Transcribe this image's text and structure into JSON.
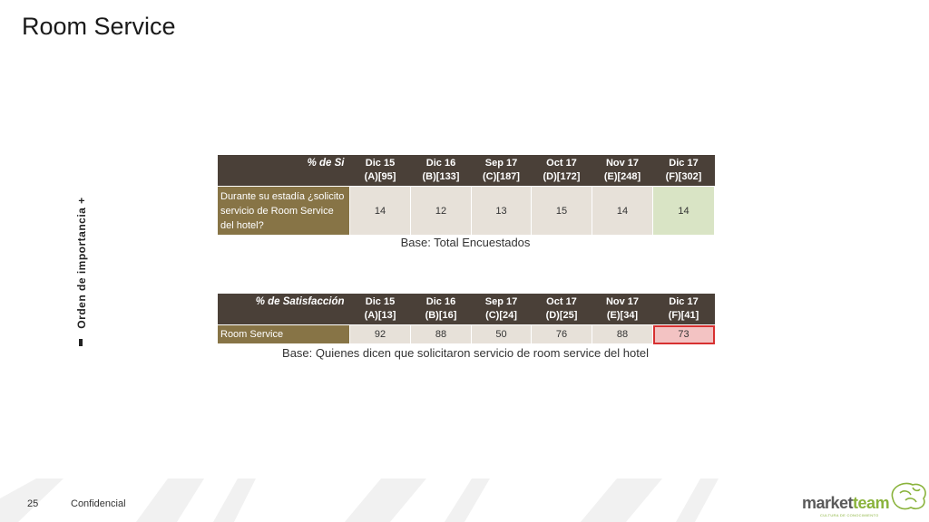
{
  "title": "Room Service",
  "axis_label": "Orden de importancia  +",
  "table1": {
    "metric": "% de Si",
    "columns": [
      {
        "line1": "Dic 15",
        "line2": "(A)[95]"
      },
      {
        "line1": "Dic 16",
        "line2": "(B)[133]"
      },
      {
        "line1": "Sep 17",
        "line2": "(C)[187]"
      },
      {
        "line1": "Oct 17",
        "line2": "(D)[172]"
      },
      {
        "line1": "Nov 17",
        "line2": "(E)[248]"
      },
      {
        "line1": "Dic 17",
        "line2": "(F)[302]"
      }
    ],
    "row_label": "Durante su estadía ¿solicito servicio de Room Service del hotel?",
    "values": [
      "14",
      "12",
      "13",
      "15",
      "14",
      "14"
    ],
    "highlight": "#d9e4c5"
  },
  "base1": "Base: Total Encuestados",
  "table2": {
    "metric": "% de Satisfacción",
    "columns": [
      {
        "line1": "Dic 15",
        "line2": "(A)[13]"
      },
      {
        "line1": "Dic 16",
        "line2": "(B)[16]"
      },
      {
        "line1": "Sep 17",
        "line2": "(C)[24]"
      },
      {
        "line1": "Oct 17",
        "line2": "(D)[25]"
      },
      {
        "line1": "Nov 17",
        "line2": "(E)[34]"
      },
      {
        "line1": "Dic 17",
        "line2": "(F)[41]"
      }
    ],
    "row_label": "Room Service",
    "values": [
      "92",
      "88",
      "50",
      "76",
      "88",
      "73"
    ],
    "highlight": "#f3c3c3"
  },
  "base2": "Base: Quienes dicen que solicitaron servicio de room service del hotel",
  "footer": {
    "page_number": "25",
    "confidential": "Confidencial"
  },
  "logo": {
    "market": "market",
    "team": "team",
    "tagline": "CULTURA DE CONOCIMIENTO"
  },
  "colors": {
    "header_bg": "#4a4038",
    "row_label_bg": "#877446",
    "cell_bg": "#e7e1d9",
    "brand_green": "#8ab33c"
  }
}
